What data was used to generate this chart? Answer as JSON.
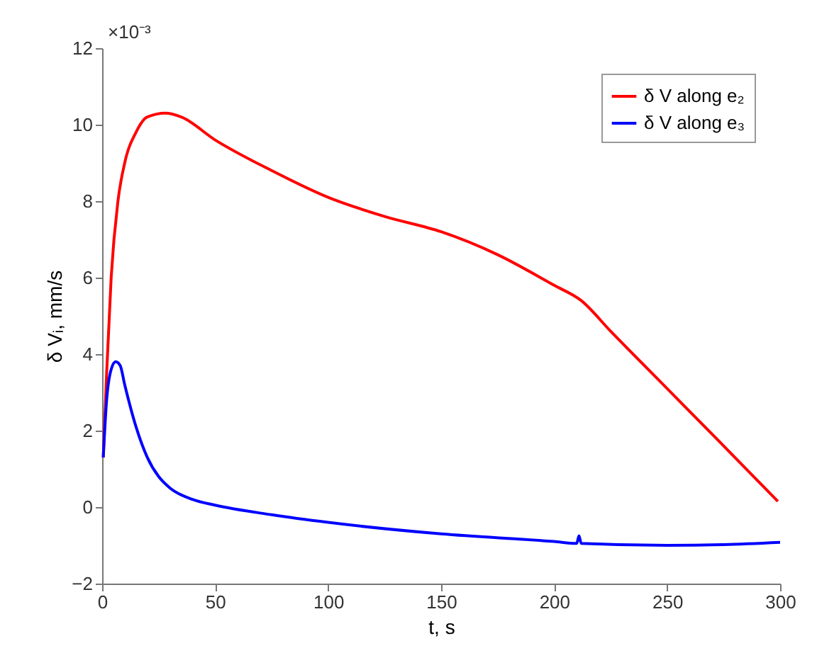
{
  "chart_data": {
    "type": "line",
    "xlabel": "t, s",
    "ylabel": "δ Vᵢ, mm/s",
    "annotations": [
      "×10⁻³"
    ],
    "xlim": [
      0,
      300
    ],
    "xticks": [
      0,
      50,
      100,
      150,
      200,
      250,
      300
    ],
    "ylim": [
      -2,
      12
    ],
    "yticks": [
      -2,
      0,
      2,
      4,
      6,
      8,
      10,
      12
    ],
    "grid": false,
    "legend": "top right",
    "line_style": "solid",
    "marker": "none",
    "series": [
      {
        "name": "δ V along e₂",
        "color": "#ff0000",
        "x": [
          0.5,
          2,
          4,
          7,
          10,
          15,
          20,
          28,
          35,
          50,
          75,
          100,
          125,
          150,
          175,
          200,
          212,
          225,
          250,
          275,
          299
        ],
        "values": [
          1.3,
          3.5,
          6,
          8,
          9,
          9.8,
          10.2,
          10.3,
          10.2,
          9.6,
          8.8,
          8.1,
          7.6,
          7.2,
          6.6,
          5.8,
          5.4,
          4.6,
          3.1,
          1.6,
          0.15
        ]
      },
      {
        "name": "δ V along e₃",
        "color": "#0000ff",
        "x": [
          0.5,
          2,
          4,
          6,
          8,
          10,
          15,
          20,
          25,
          30,
          40,
          50,
          75,
          100,
          150,
          200,
          210,
          211,
          212,
          250,
          275,
          300
        ],
        "values": [
          1.3,
          2.8,
          3.6,
          3.8,
          3.7,
          3.2,
          2.1,
          1.3,
          0.8,
          0.5,
          0.2,
          0.05,
          -0.2,
          -0.4,
          -0.7,
          -0.9,
          -0.95,
          -0.75,
          -0.95,
          -1.0,
          -0.98,
          -0.92
        ]
      }
    ]
  }
}
